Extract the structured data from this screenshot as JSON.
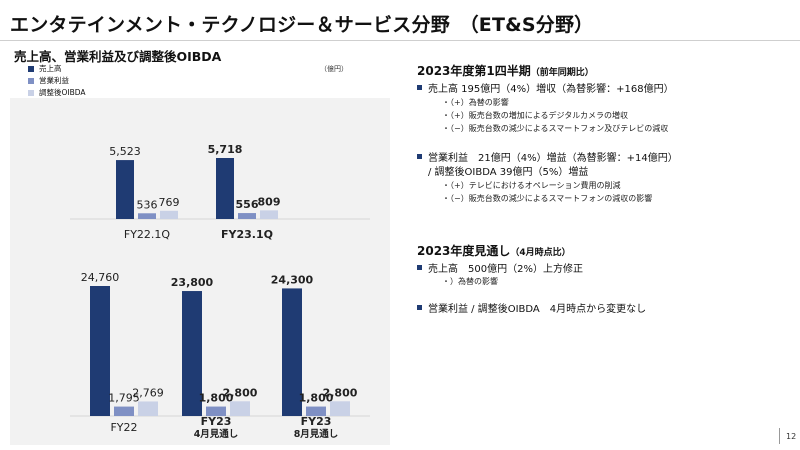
{
  "page": {
    "title": "エンタテインメント・テクノロジー＆サービス分野　（ET&S分野）",
    "page_number": "12"
  },
  "chart_title": "売上高、営業利益及び調整後OIBDA",
  "unit": "（億円）",
  "colors": {
    "sales": "#1f3b73",
    "op_income": "#7f90c4",
    "oibda": "#c9d1e6",
    "bullet": "#1f3b73",
    "panel": "#f2f2f2"
  },
  "chart_data": [
    {
      "type": "bar",
      "categories": [
        "FY22.1Q",
        "FY23.1Q"
      ],
      "series": [
        {
          "name": "売上高",
          "values": [
            5523,
            5718
          ]
        },
        {
          "name": "営業利益",
          "values": [
            536,
            556
          ]
        },
        {
          "name": "調整後OIBDA",
          "values": [
            769,
            809
          ]
        }
      ],
      "value_labels": [
        [
          "5,523",
          "536",
          "769"
        ],
        [
          "5,718",
          "556",
          "809"
        ]
      ],
      "bold_categories": [
        false,
        true
      ],
      "unit": "（億円）"
    },
    {
      "type": "bar",
      "categories": [
        "FY22",
        "FY23\n4月見通し",
        "FY23\n8月見通し"
      ],
      "series": [
        {
          "name": "売上高",
          "values": [
            24760,
            23800,
            24300
          ]
        },
        {
          "name": "営業利益",
          "values": [
            1795,
            1800,
            1800
          ]
        },
        {
          "name": "調整後OIBDA",
          "values": [
            2769,
            2800,
            2800
          ]
        }
      ],
      "value_labels": [
        [
          "24,760",
          "1,795",
          "2,769"
        ],
        [
          "23,800",
          "1,800",
          "2,800"
        ],
        [
          "24,300",
          "1,800",
          "2,800"
        ]
      ],
      "bold_categories": [
        false,
        true,
        true
      ]
    }
  ],
  "right": {
    "q1": {
      "title": "2023年度第1四半期",
      "title_note": "（前年同期比）",
      "sales_line": "売上高 195億円（4%）増収（為替影響：+168億円）",
      "sales_subs": [
        "・（+）為替の影響",
        "・（+）販売台数の増加によるデジタルカメラの増収",
        "・（−）販売台数の減少によるスマートフォン及びテレビの減収"
      ],
      "op_line1": "営業利益　21億円（4%）増益（為替影響：+14億円）",
      "op_line2": "/ 調整後OIBDA 39億円（5%）増益",
      "op_subs": [
        "・（+）テレビにおけるオペレーション費用の削減",
        "・（−）販売台数の減少によるスマートフォンの減収の影響"
      ]
    },
    "outlook": {
      "title": "2023年度見通し",
      "title_note": "（4月時点比）",
      "sales_line": "売上高　500億円（2%）上方修正",
      "sales_subs": [
        "・）為替の影響"
      ],
      "op_line": "営業利益 / 調整後OIBDA　4月時点から変更なし"
    }
  }
}
